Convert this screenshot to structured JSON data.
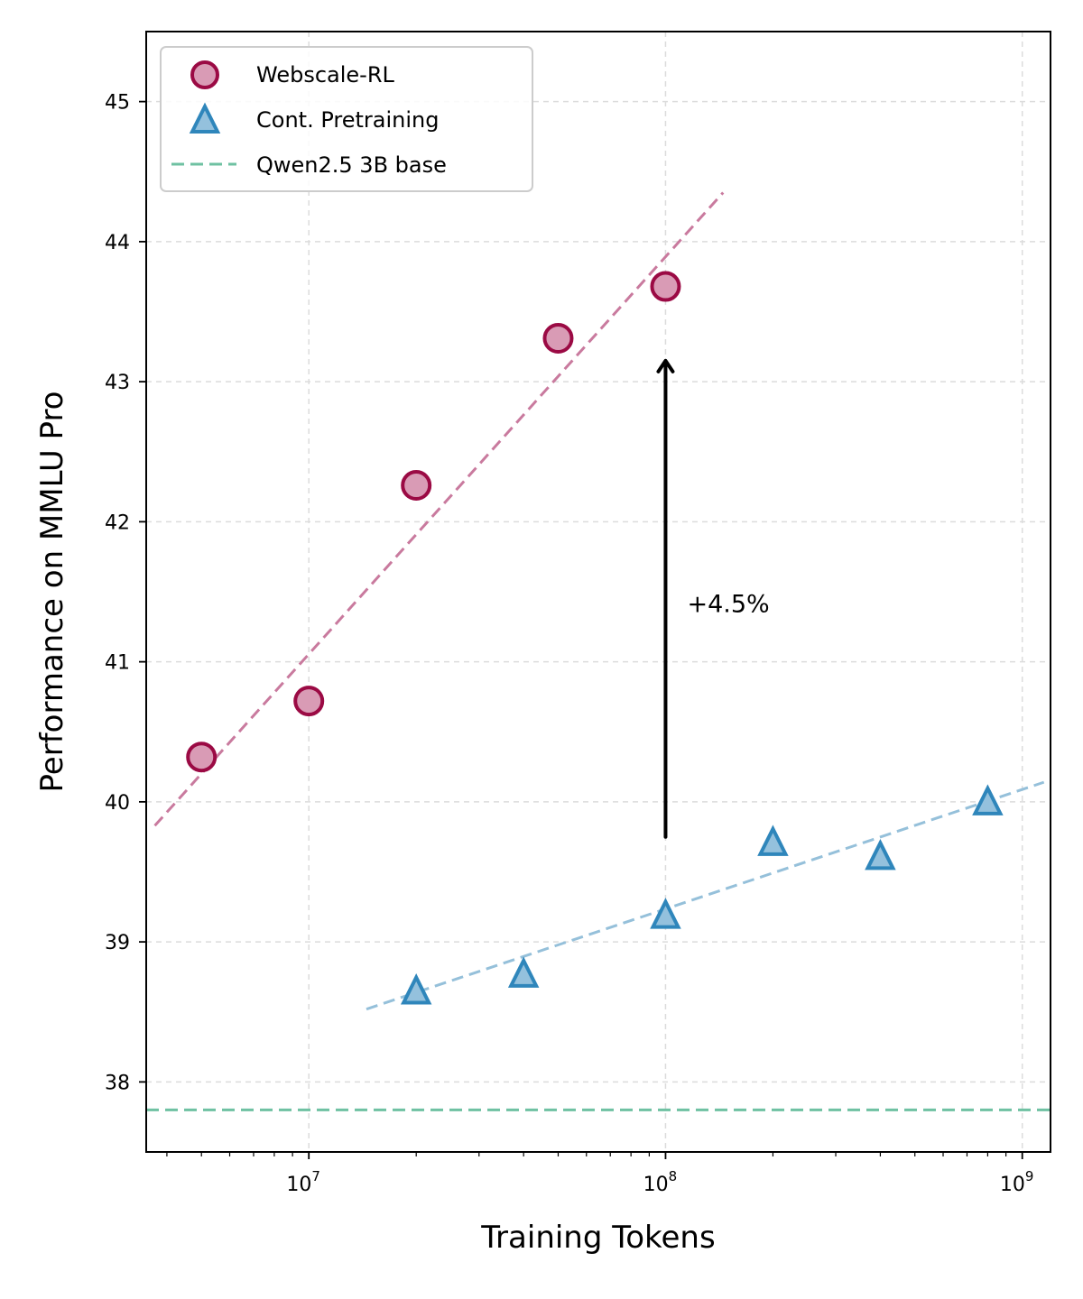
{
  "chart_data": {
    "type": "scatter",
    "xscale": "log",
    "xlabel": "Training Tokens",
    "ylabel": "Performance on MMLU Pro",
    "xlim": [
      3500000,
      1200000000
    ],
    "ylim": [
      37.5,
      45.5
    ],
    "yticks": [
      38,
      39,
      40,
      41,
      42,
      43,
      44,
      45
    ],
    "xticks": [
      {
        "value": 10000000,
        "base": "10",
        "exp": "7"
      },
      {
        "value": 100000000,
        "base": "10",
        "exp": "8"
      },
      {
        "value": 1000000000,
        "base": "10",
        "exp": "9"
      }
    ],
    "grid": true,
    "legend_position": "top-left",
    "series": [
      {
        "name": "Webscale-RL",
        "marker": "circle",
        "face_color": "#d99bb5",
        "edge_color": "#9b0a44",
        "x": [
          5000000,
          10000000,
          20000000,
          50000000,
          100000000
        ],
        "y": [
          40.32,
          40.72,
          42.26,
          43.31,
          43.68
        ],
        "trend": {
          "x": [
            3700000,
            145000000
          ],
          "y": [
            39.83,
            44.35
          ],
          "color": "#c97a9e"
        }
      },
      {
        "name": "Cont. Pretraining",
        "marker": "triangle",
        "face_color": "#94c1dd",
        "edge_color": "#2f86bb",
        "x": [
          20000000,
          40000000,
          100000000,
          200000000,
          400000000,
          800000000
        ],
        "y": [
          38.65,
          38.77,
          39.19,
          39.71,
          39.61,
          40.0
        ],
        "trend": {
          "x": [
            14500000,
            1150000000
          ],
          "y": [
            38.52,
            40.14
          ],
          "color": "#95c0da"
        }
      }
    ],
    "baseline": {
      "name": "Qwen2.5 3B base",
      "y": 37.8,
      "color": "#6fc1a2"
    },
    "annotation": {
      "text": "+4.5%",
      "arrow_x": 100000000,
      "arrow_y_from": 39.75,
      "arrow_y_to": 43.15,
      "text_y": 41.42
    }
  }
}
